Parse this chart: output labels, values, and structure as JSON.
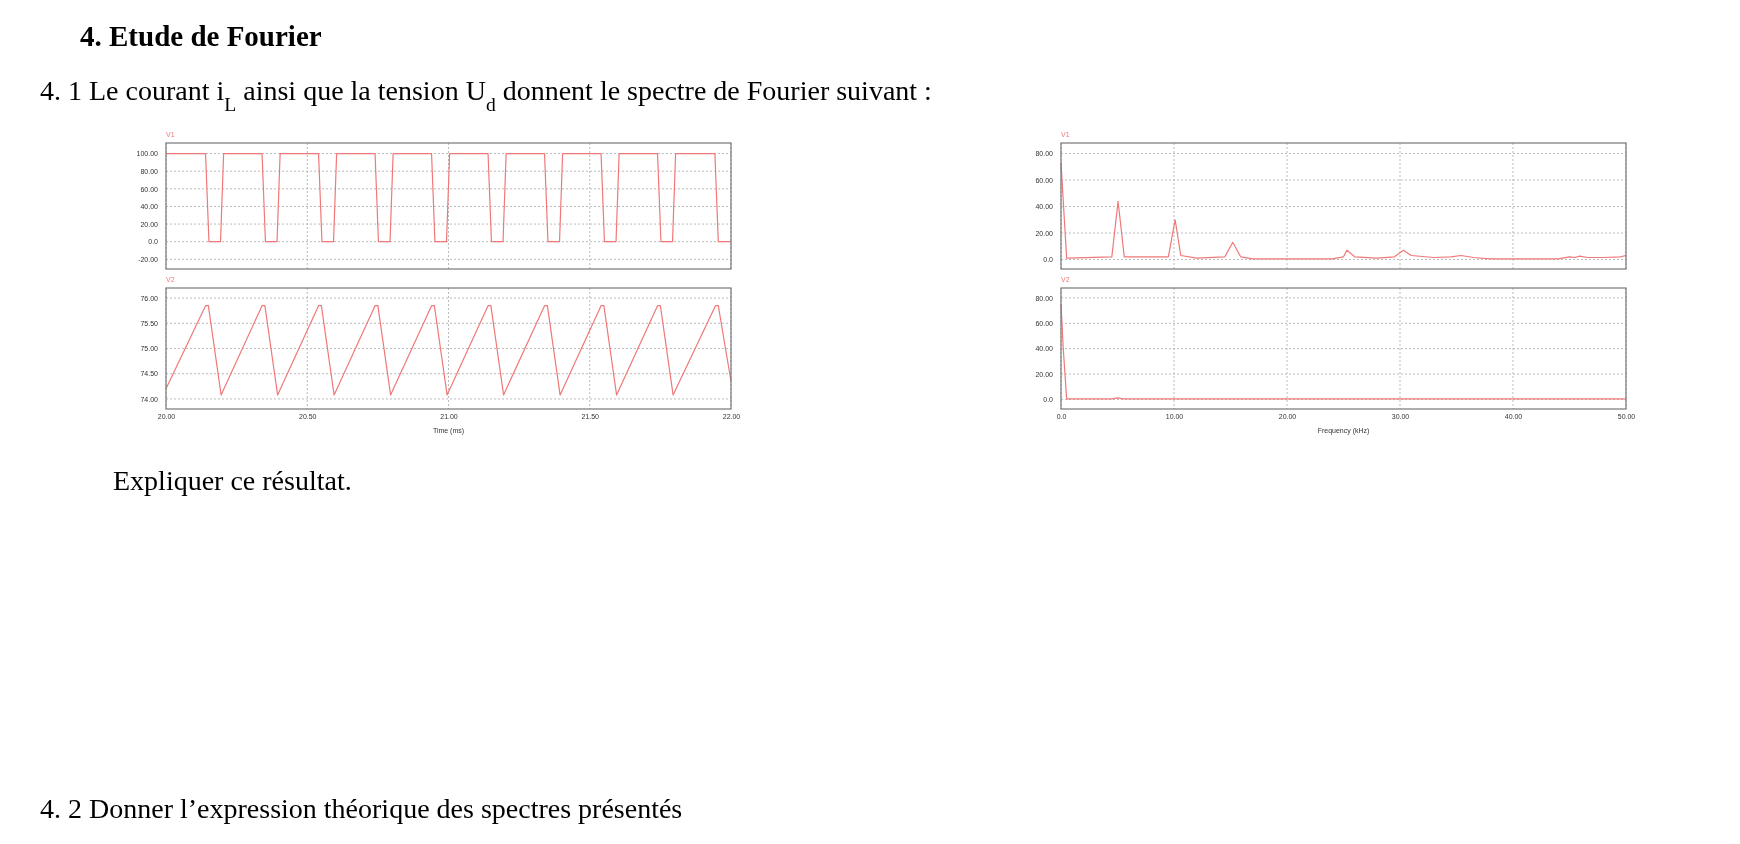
{
  "chart_data": [
    {
      "type": "line",
      "title": "4. Etude de Fourier",
      "subtitle": "4. 1 Le courant i$_{L}$ ainsi que la tension U$_{d}$ donnent le spectre de Fourier suivant :",
      "annotations": [
        "Expliquer ce résultat.",
        "4. 2 Donner l’expression théorique des spectres présentés"
      ],
      "legend": "top left",
      "grid": true,
      "line_style": "solid",
      "tick_labels": "y",
      "xlim": [
        20,
        22
      ],
      "xticks": [
        {
          "value": 20,
          "label": null
        },
        {
          "value": 20.5,
          "label": null
        },
        {
          "value": 21,
          "label": null
        },
        {
          "value": 21.5,
          "label": null
        },
        {
          "value": 22,
          "label": null
        }
      ],
      "ylim": [
        -31,
        112
      ],
      "yticks": [
        {
          "value": 100,
          "label": "100.00"
        },
        {
          "value": 80,
          "label": "80.00"
        },
        {
          "value": 60,
          "label": "60.00"
        },
        {
          "value": 40,
          "label": "40.00"
        },
        {
          "value": 20,
          "label": "20.00"
        },
        {
          "value": 0,
          "label": "0.0"
        },
        {
          "value": -20,
          "label": "-20.00"
        }
      ],
      "series": [
        {
          "name": "V1",
          "color": "#f07878",
          "x": [
            20,
            20.14,
            20.152,
            20.193,
            20.204,
            20.34,
            20.352,
            20.393,
            20.404,
            20.54,
            20.552,
            20.593,
            20.604,
            20.74,
            20.752,
            20.793,
            20.804,
            20.94,
            20.952,
            20.993,
            21.004,
            21.14,
            21.152,
            21.193,
            21.204,
            21.34,
            21.352,
            21.393,
            21.404,
            21.54,
            21.552,
            21.593,
            21.604,
            21.74,
            21.752,
            21.793,
            21.804,
            21.943,
            21.955,
            22
          ],
          "values": [
            100,
            100,
            0,
            0,
            100,
            100,
            0,
            0,
            100,
            100,
            0,
            0,
            100,
            100,
            0,
            0,
            100,
            100,
            0,
            0,
            100,
            100,
            0,
            0,
            100,
            100,
            0,
            0,
            100,
            100,
            0,
            0,
            100,
            100,
            0,
            0,
            100,
            100,
            0,
            0
          ]
        }
      ]
    },
    {
      "type": "line",
      "legend": "top left",
      "grid": true,
      "line_style": "solid",
      "xlabel": "Time (ms)",
      "xlim": [
        20,
        22
      ],
      "xticks": [
        {
          "value": 20,
          "label": "20.00"
        },
        {
          "value": 20.5,
          "label": "20.50"
        },
        {
          "value": 21,
          "label": "21.00"
        },
        {
          "value": 21.5,
          "label": "21.50"
        },
        {
          "value": 22,
          "label": "22.00"
        }
      ],
      "ylim": [
        73.8,
        76.2
      ],
      "yticks": [
        {
          "value": 76,
          "label": "76.00"
        },
        {
          "value": 75.5,
          "label": "75.50"
        },
        {
          "value": 75,
          "label": "75.00"
        },
        {
          "value": 74.5,
          "label": "74.50"
        },
        {
          "value": 74,
          "label": "74.00"
        }
      ],
      "series": [
        {
          "name": "V2",
          "color": "#f07878",
          "x": [
            20,
            20.14,
            20.15,
            20.195,
            20.34,
            20.35,
            20.395,
            20.54,
            20.55,
            20.595,
            20.74,
            20.75,
            20.795,
            20.94,
            20.95,
            20.995,
            21.14,
            21.15,
            21.195,
            21.34,
            21.35,
            21.395,
            21.54,
            21.55,
            21.595,
            21.74,
            21.75,
            21.795,
            21.945,
            21.955,
            22
          ],
          "values": [
            74.2,
            75.85,
            75.85,
            74.08,
            75.85,
            75.85,
            74.08,
            75.85,
            75.85,
            74.08,
            75.85,
            75.85,
            74.08,
            75.85,
            75.85,
            74.08,
            75.85,
            75.85,
            74.08,
            75.85,
            75.85,
            74.08,
            75.85,
            75.85,
            74.08,
            75.85,
            75.85,
            74.08,
            75.85,
            75.85,
            74.35
          ]
        }
      ]
    },
    {
      "type": "line",
      "legend": "top left",
      "grid": true,
      "line_style": "solid",
      "tick_labels": "y",
      "xlim": [
        0,
        50
      ],
      "xticks": [
        {
          "value": 0,
          "label": null
        },
        {
          "value": 10,
          "label": null
        },
        {
          "value": 20,
          "label": null
        },
        {
          "value": 30,
          "label": null
        },
        {
          "value": 40,
          "label": null
        },
        {
          "value": 50,
          "label": null
        }
      ],
      "ylim": [
        -7.2,
        88
      ],
      "yticks": [
        {
          "value": 80,
          "label": "80.00"
        },
        {
          "value": 60,
          "label": "60.00"
        },
        {
          "value": 40,
          "label": "40.00"
        },
        {
          "value": 20,
          "label": "20.00"
        },
        {
          "value": 0,
          "label": "0.0"
        }
      ],
      "series": [
        {
          "name": "V1",
          "color": "#f07878",
          "x": [
            0,
            0.5,
            4.5,
            5.05,
            5.6,
            9.5,
            10.1,
            10.6,
            12,
            14.5,
            15.2,
            15.9,
            17,
            24,
            25,
            25.3,
            26,
            28,
            29.5,
            30.3,
            31,
            33,
            34.5,
            35.4,
            36.5,
            38,
            44,
            45,
            45.5,
            45.9,
            46.6,
            48,
            49.5,
            50
          ],
          "values": [
            73,
            1,
            2,
            44,
            2,
            2,
            30,
            3,
            1,
            2,
            13,
            2,
            0.5,
            0.5,
            2,
            7,
            2,
            1,
            2,
            7,
            3,
            1.5,
            2,
            3,
            1.5,
            0.5,
            0.5,
            2,
            1.5,
            2.5,
            1.5,
            1.5,
            2,
            3
          ]
        }
      ]
    },
    {
      "type": "line",
      "legend": "top left",
      "grid": true,
      "line_style": "solid",
      "xlabel": "Frequency (kHz)",
      "xlim": [
        0,
        50
      ],
      "xticks": [
        {
          "value": 0,
          "label": "0.0"
        },
        {
          "value": 10,
          "label": "10.00"
        },
        {
          "value": 20,
          "label": "20.00"
        },
        {
          "value": 30,
          "label": "30.00"
        },
        {
          "value": 40,
          "label": "40.00"
        },
        {
          "value": 50,
          "label": "50.00"
        }
      ],
      "ylim": [
        -7.5,
        87.8
      ],
      "yticks": [
        {
          "value": 80,
          "label": "80.00"
        },
        {
          "value": 60,
          "label": "60.00"
        },
        {
          "value": 40,
          "label": "40.00"
        },
        {
          "value": 20,
          "label": "20.00"
        },
        {
          "value": 0,
          "label": "0.0"
        }
      ],
      "series": [
        {
          "name": "V2",
          "color": "#f07878",
          "x": [
            0,
            0.2,
            0.5,
            4.5,
            5,
            5.5,
            50
          ],
          "values": [
            75,
            40,
            0.5,
            0.5,
            1.2,
            0.5,
            0.5
          ]
        }
      ]
    }
  ]
}
